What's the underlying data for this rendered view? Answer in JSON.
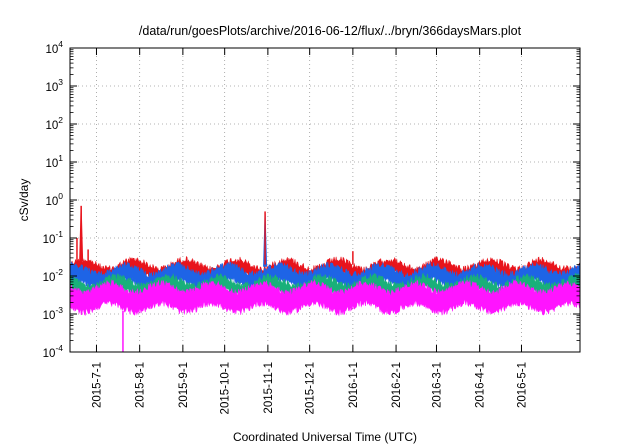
{
  "chart_data": {
    "type": "line",
    "title": "/data/run/goesPlots/archive/2016-06-12/flux/../bryn/366daysMars.plot",
    "xlabel": "Coordinated Universal Time (UTC)",
    "ylabel": "cSv/day",
    "yscale": "log",
    "ylim": [
      0.0001,
      10000
    ],
    "y_tick_labels": [
      {
        "base": "10",
        "exp": "-4"
      },
      {
        "base": "10",
        "exp": "-3"
      },
      {
        "base": "10",
        "exp": "-2"
      },
      {
        "base": "10",
        "exp": "-1"
      },
      {
        "base": "10",
        "exp": "0"
      },
      {
        "base": "10",
        "exp": "1"
      },
      {
        "base": "10",
        "exp": "2"
      },
      {
        "base": "10",
        "exp": "3"
      },
      {
        "base": "10",
        "exp": "4"
      }
    ],
    "xlim": [
      "2015-06-12",
      "2016-06-12"
    ],
    "x_ticks": [
      "2015-7-1",
      "2015-8-1",
      "2015-9-1",
      "2015-10-1",
      "2015-11-1",
      "2015-12-1",
      "2016-1-1",
      "2016-2-1",
      "2016-3-1",
      "2016-4-1",
      "2016-5-1"
    ],
    "grid": true,
    "legend": "none",
    "series": [
      {
        "color": "#e8141c",
        "typical_range": [
          0.008,
          0.025
        ],
        "peak": {
          "x": "2015-06-20",
          "y": 0.7
        }
      },
      {
        "color": "#1e64e6",
        "typical_range": [
          0.005,
          0.018
        ],
        "peak": {
          "x": "2015-10-30",
          "y": 0.45
        }
      },
      {
        "color": "#19b07a",
        "typical_range": [
          0.003,
          0.009
        ]
      },
      {
        "color": "#ff14ff",
        "typical_range": [
          0.0012,
          0.006
        ],
        "dip": {
          "x": "2015-07-20",
          "y": 0.0001
        }
      }
    ],
    "spikes": [
      {
        "x": "2015-06-17",
        "y": 0.1
      },
      {
        "x": "2015-06-20",
        "y": 0.7
      },
      {
        "x": "2015-06-25",
        "y": 0.05
      },
      {
        "x": "2015-10-30",
        "y": 0.5
      },
      {
        "x": "2016-01-01",
        "y": 0.045
      }
    ]
  }
}
